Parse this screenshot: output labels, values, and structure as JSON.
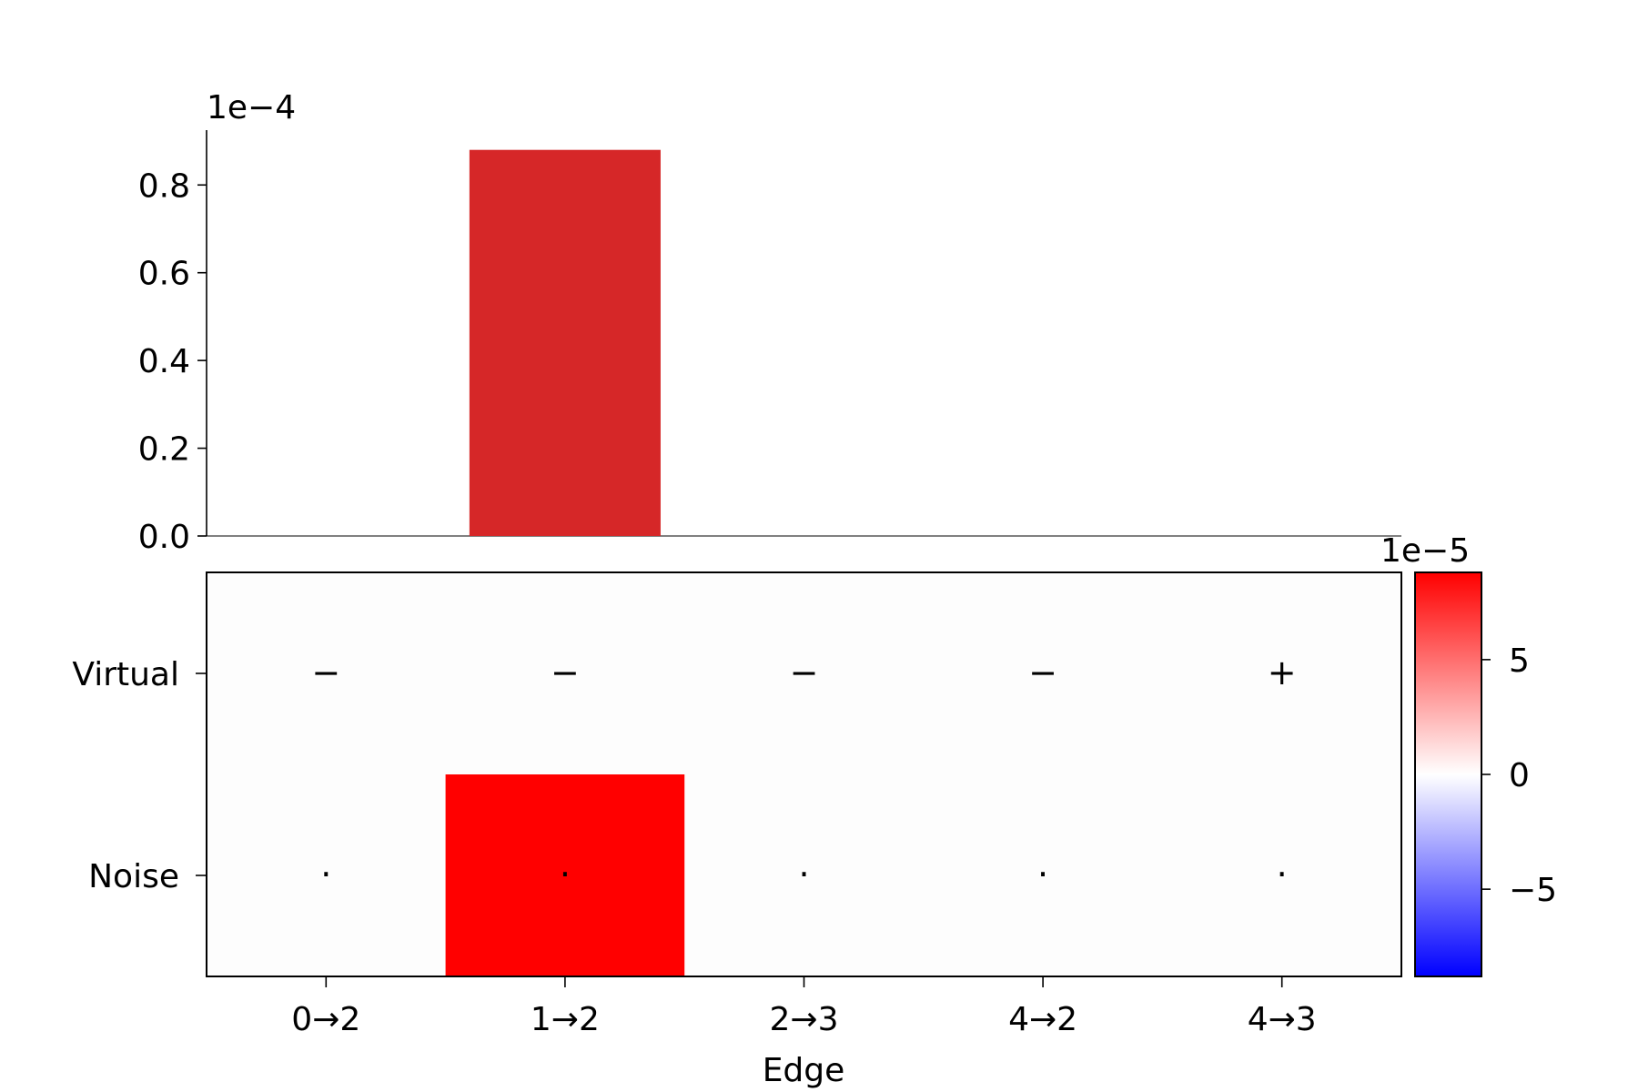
{
  "chart_data": [
    {
      "type": "bar",
      "categories": [
        "0→2",
        "1→2",
        "2→3",
        "4→2",
        "4→3"
      ],
      "values": [
        0.0,
        8.8e-05,
        0.0,
        0.0,
        0.0
      ],
      "offset_label": "1e−4",
      "yticks": [
        "0.0",
        "0.2",
        "0.4",
        "0.6",
        "0.8"
      ],
      "ylim": [
        0,
        9.25e-05
      ],
      "bar_color": "#d62728"
    },
    {
      "type": "heatmap",
      "x_categories": [
        "0→2",
        "1→2",
        "2→3",
        "4→2",
        "4→3"
      ],
      "y_categories": [
        "Virtual",
        "Noise"
      ],
      "xlabel": "Edge",
      "values": [
        [
          0.0,
          0.0,
          0.0,
          0.0,
          0.0
        ],
        [
          0.0,
          8.8e-05,
          0.0,
          0.0,
          0.0
        ]
      ],
      "cell_annotations": [
        [
          "−",
          "−",
          "−",
          "−",
          "+"
        ],
        [
          "·",
          "·",
          "·",
          "·",
          "·"
        ]
      ],
      "colorbar": {
        "offset_label": "1e−5",
        "ticks": [
          "−5",
          "0",
          "5"
        ],
        "range": [
          -8.8e-05,
          8.8e-05
        ],
        "colors": [
          "#0000ff",
          "#ffffff",
          "#ff0000"
        ]
      }
    }
  ]
}
